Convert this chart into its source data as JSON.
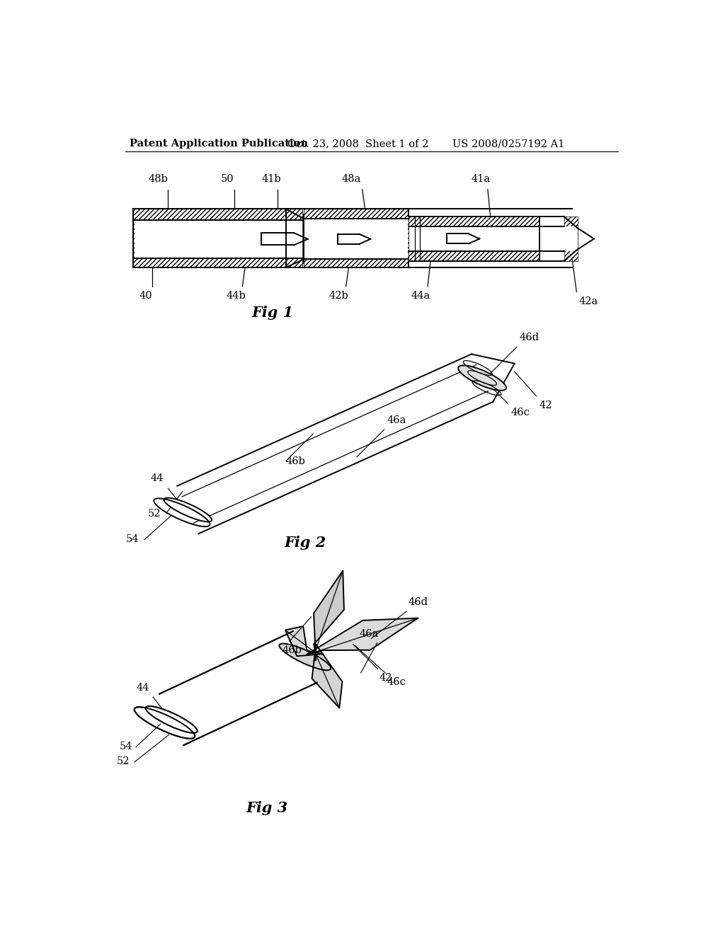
{
  "background_color": "#ffffff",
  "header_text": "Patent Application Publication",
  "header_date": "Oct. 23, 2008  Sheet 1 of 2",
  "header_patent": "US 2008/0257192 A1",
  "fig1_label": "Fig 1",
  "fig2_label": "Fig 2",
  "fig3_label": "Fig 3",
  "line_color": "#000000",
  "label_fontsize": 10.5,
  "fig_label_fontsize": 15,
  "header_fontsize": 10.5
}
